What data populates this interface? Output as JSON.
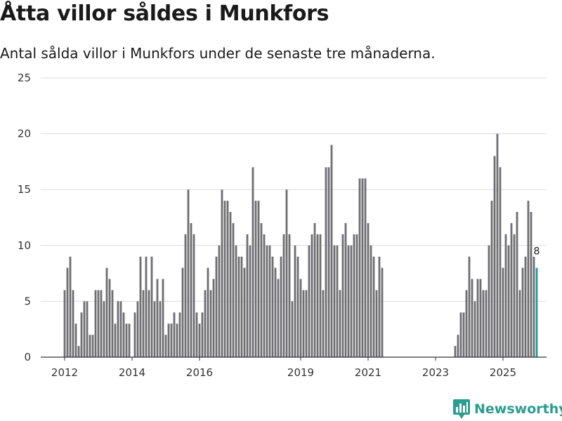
{
  "header": {
    "title": "Åtta villor såldes i Munkfors",
    "subtitle": "Antal sålda villor i Munkfors under de senaste tre månaderna."
  },
  "logo": {
    "text": "Newsworthy",
    "icon": "newsworthy-chart-icon",
    "color": "#2a9d8f"
  },
  "colors": {
    "bar": "#6e6e73",
    "highlight": "#1f9c94",
    "grid": "#dddddd",
    "axis": "#333333"
  },
  "chart_data": {
    "type": "bar",
    "title": "Åtta villor såldes i Munkfors",
    "subtitle": "Antal sålda villor i Munkfors under de senaste tre månaderna.",
    "xlabel": "",
    "ylabel": "",
    "ylim": [
      0,
      25
    ],
    "yticks": [
      0,
      5,
      10,
      15,
      20,
      25
    ],
    "xticks": [
      "2012",
      "2014",
      "2016",
      "2019",
      "2021",
      "2023",
      "2025"
    ],
    "start": "2012-01",
    "frequency": "monthly",
    "grid": true,
    "highlight_last": true,
    "last_value_label": "8",
    "values": [
      6,
      8,
      9,
      6,
      3,
      1,
      4,
      5,
      5,
      2,
      2,
      6,
      6,
      6,
      5,
      8,
      7,
      6,
      3,
      5,
      5,
      4,
      3,
      3,
      0,
      4,
      5,
      9,
      6,
      9,
      6,
      9,
      5,
      7,
      5,
      7,
      2,
      3,
      3,
      4,
      3,
      4,
      8,
      11,
      15,
      12,
      11,
      4,
      3,
      4,
      6,
      8,
      6,
      7,
      9,
      10,
      15,
      14,
      14,
      13,
      12,
      10,
      9,
      9,
      8,
      11,
      10,
      17,
      14,
      14,
      12,
      11,
      10,
      10,
      9,
      8,
      7,
      9,
      11,
      15,
      11,
      5,
      10,
      9,
      7,
      6,
      6,
      10,
      11,
      12,
      11,
      11,
      6,
      17,
      17,
      19,
      10,
      10,
      6,
      11,
      12,
      10,
      10,
      11,
      11,
      16,
      16,
      16,
      12,
      10,
      9,
      6,
      9,
      8,
      0,
      0,
      0,
      0,
      0,
      0,
      0,
      0,
      0,
      0,
      0,
      0,
      0,
      0,
      0,
      0,
      0,
      0,
      0,
      0,
      0,
      0,
      0,
      0,
      0,
      1,
      2,
      4,
      4,
      6,
      9,
      7,
      5,
      7,
      7,
      6,
      6,
      10,
      14,
      18,
      20,
      17,
      8,
      11,
      10,
      12,
      11,
      13,
      6,
      8,
      9,
      14,
      13,
      9,
      8
    ]
  }
}
